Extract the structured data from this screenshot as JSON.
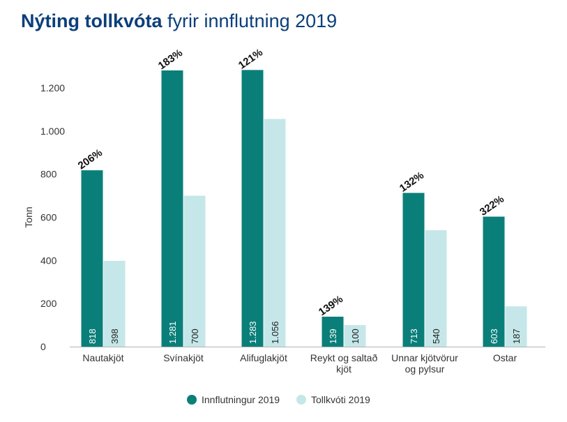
{
  "header": {
    "title_bold": "Nýting tollkvóta",
    "title_rest": "fyrir innflutning 2019"
  },
  "colors": {
    "imports": "#0a7f7a",
    "quota": "#c5e7e9",
    "title": "#0b3f7a"
  },
  "chart_data": {
    "type": "bar",
    "title": "Nýting tollkvóta fyrir innflutning 2019",
    "ylabel": "Tonn",
    "xlabel": "",
    "ylim": [
      0,
      1300
    ],
    "yticks": [
      0,
      200,
      400,
      600,
      800,
      1000,
      1200
    ],
    "ytick_labels": [
      "0",
      "200",
      "400",
      "600",
      "800",
      "1.000",
      "1.200"
    ],
    "categories": [
      [
        "Nautakjöt"
      ],
      [
        "Svínakjöt"
      ],
      [
        "Alifuglakjöt"
      ],
      [
        "Reykt og saltað",
        "kjöt"
      ],
      [
        "Unnar kjötvörur",
        "og pylsur"
      ],
      [
        "Ostar"
      ]
    ],
    "series": [
      {
        "name": "Innflutningur 2019",
        "values": [
          818,
          1281,
          1283,
          139,
          713,
          603
        ],
        "value_labels": [
          "818",
          "1.281",
          "1.283",
          "139",
          "713",
          "603"
        ]
      },
      {
        "name": "Tollkvóti 2019",
        "values": [
          398,
          700,
          1056,
          100,
          540,
          187
        ],
        "value_labels": [
          "398",
          "700",
          "1.056",
          "100",
          "540",
          "187"
        ]
      }
    ],
    "annotations": [
      "206%",
      "183%",
      "121%",
      "139%",
      "132%",
      "322%"
    ],
    "grid": false,
    "legend": "bottom-center"
  }
}
